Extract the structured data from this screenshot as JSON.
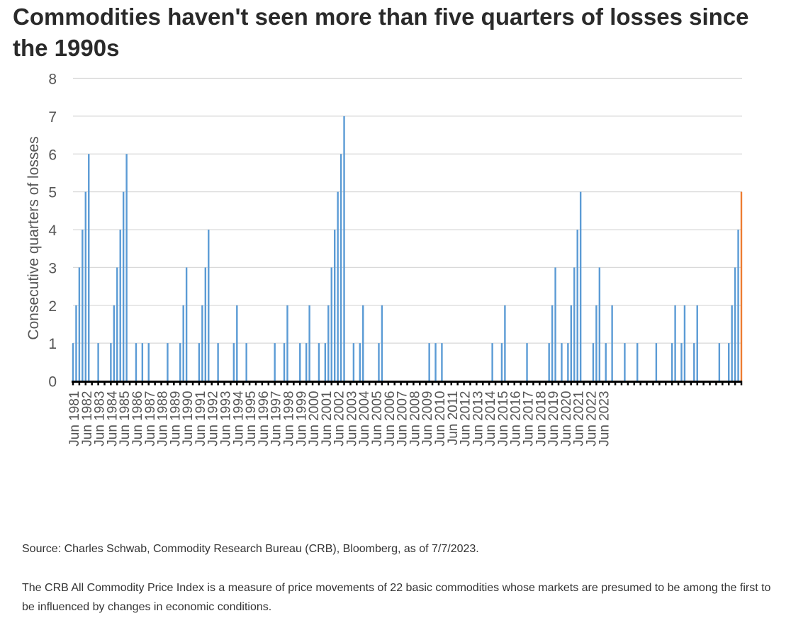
{
  "title": "Commodities haven't seen more than five quarters of losses since the 1990s",
  "source": "Source: Charles Schwab, Commodity Research Bureau (CRB), Bloomberg, as of 7/7/2023.",
  "description": "The CRB All Commodity Price Index is a measure of price movements of 22 basic commodities whose markets are presumed to be among the first to be influenced by changes in economic conditions.",
  "colors": {
    "bar": "#5b9bd5",
    "highlight": "#ed7d31",
    "grid": "#d9d9d9",
    "axis": "#000000",
    "text": "#555555"
  },
  "chart_data": {
    "type": "bar",
    "ylabel": "Consecutive quarters of losses",
    "ylim": [
      0,
      8
    ],
    "yticks": [
      0,
      1,
      2,
      3,
      4,
      5,
      6,
      7,
      8
    ],
    "grid": true,
    "xlabels": [
      "Jun 1981",
      "Jun 1982",
      "Jun 1983",
      "Jun 1984",
      "Jun 1985",
      "Jun 1986",
      "Jun 1987",
      "Jun 1988",
      "Jun 1989",
      "Jun 1990",
      "Jun 1991",
      "Jun 1992",
      "Jun 1993",
      "Jun 1994",
      "Jun 1995",
      "Jun 1996",
      "Jun 1997",
      "Jun 1998",
      "Jun 1999",
      "Jun 2000",
      "Jun 2001",
      "Jun 2002",
      "Jun 2003",
      "Jun 2004",
      "Jun 2005",
      "Jun 2006",
      "Jun 2007",
      "Jun 2008",
      "Jun 2009",
      "Jun 2010",
      "Jun 2011",
      "Jun 2012",
      "Jun 2013",
      "Jun 2014",
      "Jun 2015",
      "Jun 2016",
      "Jun 2017",
      "Jun 2018",
      "Jun 2019",
      "Jun 2020",
      "Jun 2021",
      "Jun 2022",
      "Jun 2023"
    ],
    "quarters_start": "Jun 1981",
    "values": [
      1,
      2,
      3,
      4,
      5,
      6,
      0,
      0,
      1,
      0,
      0,
      0,
      1,
      2,
      3,
      4,
      5,
      6,
      0,
      0,
      1,
      0,
      1,
      0,
      1,
      0,
      0,
      0,
      0,
      0,
      1,
      0,
      0,
      0,
      1,
      2,
      3,
      0,
      0,
      0,
      1,
      2,
      3,
      4,
      0,
      0,
      1,
      0,
      0,
      0,
      0,
      1,
      2,
      0,
      0,
      1,
      0,
      0,
      0,
      0,
      0,
      0,
      0,
      0,
      1,
      0,
      0,
      1,
      2,
      0,
      0,
      0,
      1,
      0,
      1,
      2,
      0,
      0,
      1,
      0,
      1,
      2,
      3,
      4,
      5,
      6,
      7,
      0,
      0,
      1,
      0,
      1,
      2,
      0,
      0,
      0,
      0,
      1,
      2,
      0,
      0,
      0,
      0,
      0,
      0,
      0,
      0,
      0,
      0,
      0,
      0,
      0,
      0,
      1,
      0,
      1,
      0,
      1,
      0,
      0,
      0,
      0,
      0,
      0,
      0,
      0,
      0,
      0,
      0,
      0,
      0,
      0,
      0,
      1,
      0,
      0,
      1,
      2,
      0,
      0,
      0,
      0,
      0,
      0,
      1,
      0,
      0,
      0,
      0,
      0,
      0,
      1,
      2,
      3,
      0,
      1,
      0,
      1,
      2,
      3,
      4,
      5,
      0,
      0,
      0,
      1,
      2,
      3,
      0,
      1,
      0,
      2,
      0,
      0,
      0,
      1,
      0,
      0,
      0,
      1,
      0,
      0,
      0,
      0,
      0,
      1,
      0,
      0,
      0,
      0,
      1,
      2,
      0,
      1,
      2,
      0,
      0,
      1,
      2,
      0,
      0,
      0,
      0,
      0,
      0,
      1,
      0,
      0,
      1,
      2,
      3,
      4,
      5
    ],
    "highlight_last": true
  }
}
